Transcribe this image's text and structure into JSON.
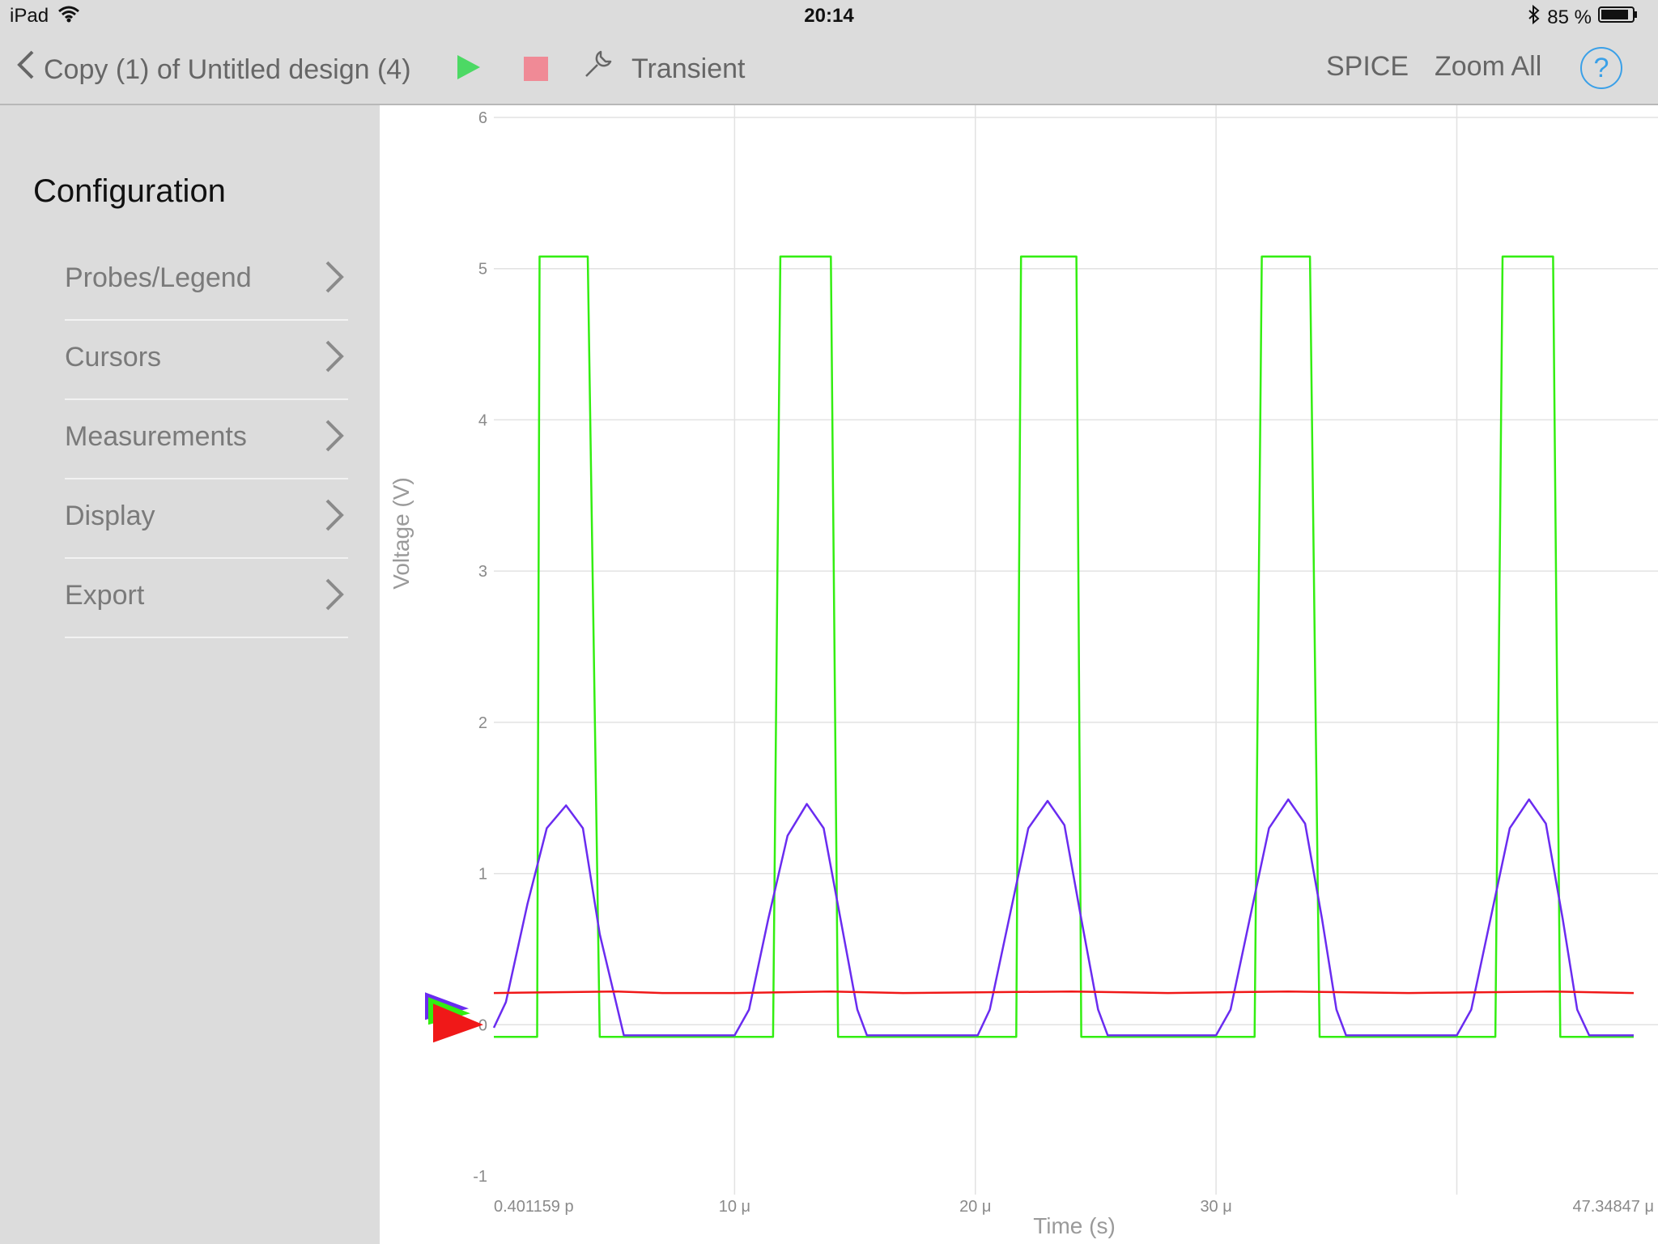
{
  "status_bar": {
    "device": "iPad",
    "time": "20:14",
    "battery": "85 %"
  },
  "nav": {
    "back_label": "Copy (1) of Untitled design (4)",
    "analysis_label": "Transient",
    "spice_label": "SPICE",
    "zoom_label": "Zoom All",
    "help_label": "?"
  },
  "sidebar": {
    "title": "Configuration",
    "items": [
      {
        "label": "Probes/Legend"
      },
      {
        "label": "Cursors"
      },
      {
        "label": "Measurements"
      },
      {
        "label": "Display"
      },
      {
        "label": "Export"
      }
    ]
  },
  "colors": {
    "green_trace": "#33ee11",
    "purple_trace": "#6a2cf0",
    "red_trace": "#f01818",
    "grid": "#e2e2e2",
    "play": "#4cd964",
    "stop": "#f08a96",
    "accent": "#3aa0e8"
  },
  "chart_data": {
    "type": "line",
    "xlabel": "Time (s)",
    "ylabel": "Voltage (V)",
    "xlim": [
      4.01159e-13,
      4.734847e-05
    ],
    "ylim": [
      -1,
      6
    ],
    "x_tick_labels": [
      "0.401159 p",
      "10 μ",
      "20 μ",
      "30 μ",
      "47.34847 μ"
    ],
    "y_tick_labels": [
      "6",
      "5",
      "4",
      "3",
      "2",
      "1",
      "0",
      "-1"
    ],
    "grid": true,
    "series": [
      {
        "color": "#33ee11",
        "description": "square pulse, high ≈5.08 V, low ≈-0.08 V",
        "points": [
          [
            0,
            -0.08
          ],
          [
            1.8,
            -0.08
          ],
          [
            1.9,
            5.08
          ],
          [
            3.9,
            5.08
          ],
          [
            4.4,
            -0.08
          ],
          [
            11.6,
            -0.08
          ],
          [
            11.9,
            5.08
          ],
          [
            14.0,
            5.08
          ],
          [
            14.3,
            -0.08
          ],
          [
            21.7,
            -0.08
          ],
          [
            21.9,
            5.08
          ],
          [
            24.2,
            5.08
          ],
          [
            24.4,
            -0.08
          ],
          [
            31.6,
            -0.08
          ],
          [
            31.9,
            5.08
          ],
          [
            33.9,
            5.08
          ],
          [
            34.3,
            -0.08
          ],
          [
            41.6,
            -0.08
          ],
          [
            41.9,
            5.08
          ],
          [
            44.0,
            5.08
          ],
          [
            44.3,
            -0.08
          ],
          [
            47.35,
            -0.08
          ]
        ]
      },
      {
        "color": "#6a2cf0",
        "description": "rounded pulse, peak ≈1.45–1.49 V, floor ≈-0.07 V",
        "points": [
          [
            0,
            -0.02
          ],
          [
            0.5,
            0.15
          ],
          [
            1.4,
            0.8
          ],
          [
            2.2,
            1.3
          ],
          [
            3.0,
            1.45
          ],
          [
            3.7,
            1.3
          ],
          [
            4.4,
            0.6
          ],
          [
            5.4,
            -0.07
          ],
          [
            10.0,
            -0.07
          ],
          [
            10.6,
            0.1
          ],
          [
            11.4,
            0.7
          ],
          [
            12.2,
            1.25
          ],
          [
            13.0,
            1.46
          ],
          [
            13.7,
            1.3
          ],
          [
            14.4,
            0.7
          ],
          [
            15.1,
            0.1
          ],
          [
            15.5,
            -0.07
          ],
          [
            20.1,
            -0.07
          ],
          [
            20.6,
            0.1
          ],
          [
            21.4,
            0.7
          ],
          [
            22.2,
            1.3
          ],
          [
            23.0,
            1.48
          ],
          [
            23.7,
            1.32
          ],
          [
            24.4,
            0.7
          ],
          [
            25.1,
            0.1
          ],
          [
            25.5,
            -0.07
          ],
          [
            30.0,
            -0.07
          ],
          [
            30.6,
            0.1
          ],
          [
            31.4,
            0.7
          ],
          [
            32.2,
            1.3
          ],
          [
            33.0,
            1.49
          ],
          [
            33.7,
            1.33
          ],
          [
            34.4,
            0.7
          ],
          [
            35.0,
            0.1
          ],
          [
            35.4,
            -0.07
          ],
          [
            40.0,
            -0.07
          ],
          [
            40.6,
            0.1
          ],
          [
            41.4,
            0.7
          ],
          [
            42.2,
            1.3
          ],
          [
            43.0,
            1.49
          ],
          [
            43.7,
            1.33
          ],
          [
            44.4,
            0.7
          ],
          [
            45.0,
            0.1
          ],
          [
            45.5,
            -0.07
          ],
          [
            47.35,
            -0.07
          ]
        ]
      },
      {
        "color": "#f01818",
        "description": "nearly flat ≈0.21 V",
        "points": [
          [
            0,
            0.21
          ],
          [
            5,
            0.22
          ],
          [
            7,
            0.21
          ],
          [
            10,
            0.21
          ],
          [
            14,
            0.22
          ],
          [
            17,
            0.21
          ],
          [
            24,
            0.22
          ],
          [
            28,
            0.21
          ],
          [
            33,
            0.22
          ],
          [
            38,
            0.21
          ],
          [
            44,
            0.22
          ],
          [
            47.35,
            0.21
          ]
        ]
      }
    ]
  }
}
